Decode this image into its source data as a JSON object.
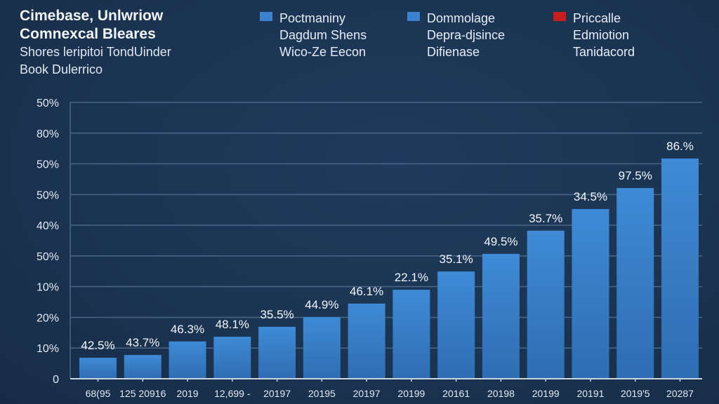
{
  "header": {
    "title_lines": [
      "Cimebase, Unlwriow",
      "Comnexcal Bleares"
    ],
    "subtitle_lines": [
      "Shores leripitoi TondUinder",
      "Book Dulerrico"
    ]
  },
  "legend": [
    {
      "color": "#3a82cf",
      "lines": [
        "Poctmaniny",
        "Dagdum Shens",
        "Wico-Ze Eecon"
      ]
    },
    {
      "color": "#3a82cf",
      "lines": [
        "Dommolage",
        "Depra-djsince",
        "Difienase"
      ]
    },
    {
      "color": "#c81e1e",
      "lines": [
        "Priccalle",
        "Edmiotion",
        "Tanidacord"
      ]
    }
  ],
  "colors": {
    "bar_top": "#3f8ad6",
    "bar_bottom": "#2e6db2",
    "gridline": "#4a6688",
    "axis": "#c9d6e6"
  },
  "chart_data": {
    "type": "bar",
    "title": "Cimebase, Unlwriow Comnexcal Bleares",
    "subtitle": "Shores leripitoi TondUinder Book Dulerrico",
    "xlabel": "",
    "ylabel": "",
    "y_tick_labels": [
      "0",
      "10%",
      "20%",
      "10%",
      "50%",
      "40%",
      "50%",
      "50%",
      "80%",
      "50%"
    ],
    "y_range_fraction": [
      0,
      1
    ],
    "grid": true,
    "legend_position": "top",
    "categories": [
      "68(95",
      "125 20916",
      "2019",
      "12,699 -",
      "20197",
      "20195",
      "20197",
      "20199",
      "20161",
      "20198",
      "20199",
      "20191",
      "2019'5",
      "20287"
    ],
    "series": [
      {
        "name": "Poctmaniny",
        "values_fraction_of_axis": [
          0.076,
          0.086,
          0.135,
          0.152,
          0.188,
          0.223,
          0.272,
          0.322,
          0.388,
          0.452,
          0.536,
          0.614,
          0.69,
          0.797
        ],
        "data_labels": [
          "42.5%",
          "43.7%",
          "46.3%",
          "48.1%",
          "35.5%",
          "44.9%",
          "46.1%",
          "22.1%",
          "35.1%",
          "49.5%",
          "35.7%",
          "34.5%",
          "97.5%",
          "86.%"
        ]
      }
    ]
  }
}
